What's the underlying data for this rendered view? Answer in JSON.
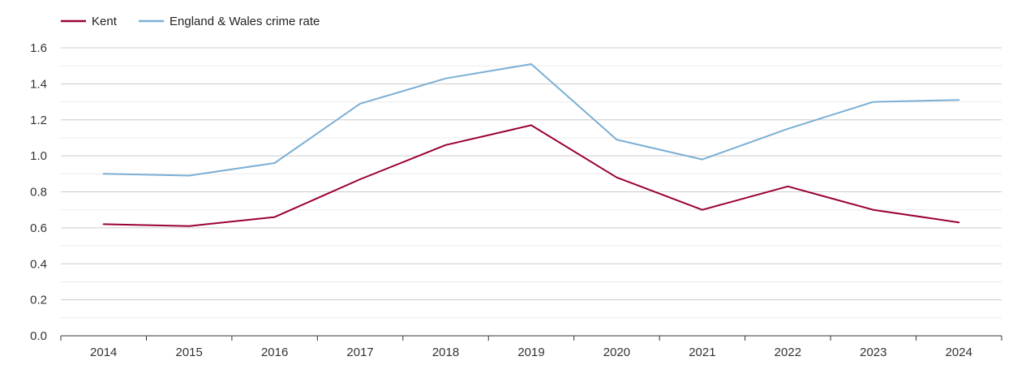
{
  "chart_data": {
    "type": "line",
    "x": [
      "2014",
      "2015",
      "2016",
      "2017",
      "2018",
      "2019",
      "2020",
      "2021",
      "2022",
      "2023",
      "2024"
    ],
    "series": [
      {
        "name": "Kent",
        "color": "#990033",
        "values": [
          0.62,
          0.61,
          0.66,
          0.87,
          1.06,
          1.17,
          0.88,
          0.7,
          0.83,
          0.7,
          0.63
        ]
      },
      {
        "name": "England & Wales crime rate",
        "color": "#7bafd4",
        "values": [
          0.9,
          0.89,
          0.96,
          1.29,
          1.43,
          1.51,
          1.09,
          0.98,
          1.15,
          1.3,
          1.31
        ]
      }
    ],
    "yticks": [
      "0.0",
      "0.2",
      "0.4",
      "0.6",
      "0.8",
      "1.0",
      "1.2",
      "1.4",
      "1.6"
    ],
    "ylim": [
      0,
      1.6
    ],
    "grid": true,
    "legend": "top-left",
    "title": "",
    "xlabel": "",
    "ylabel": ""
  }
}
